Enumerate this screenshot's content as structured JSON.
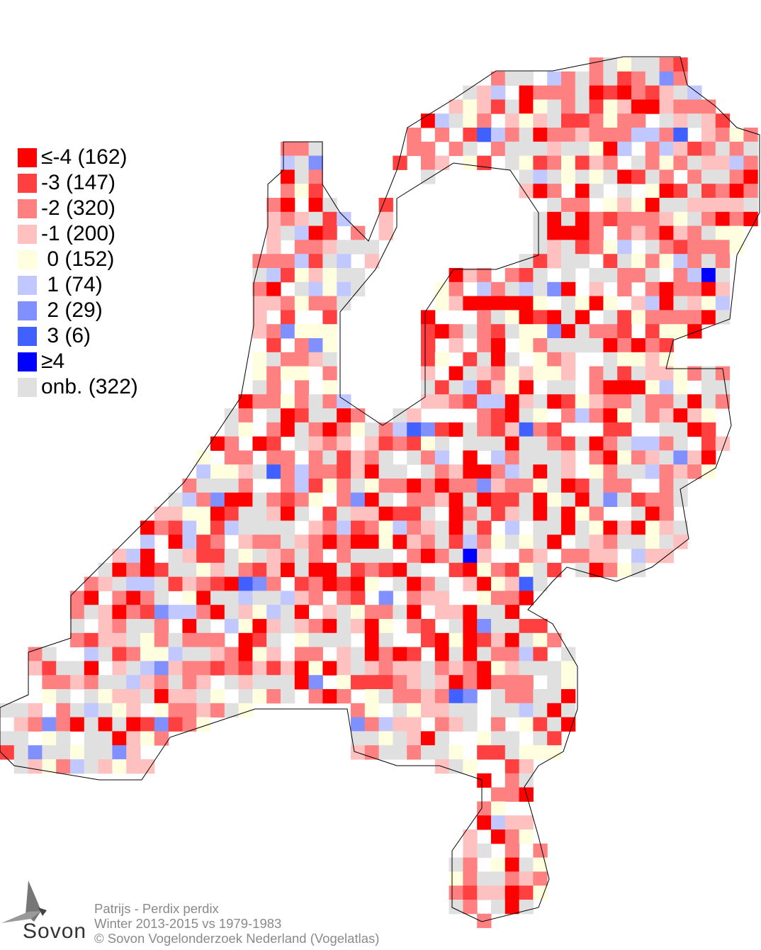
{
  "legend": [
    {
      "label": "≤-4 (162)",
      "color": "#ff0000"
    },
    {
      "label": "-3 (147)",
      "color": "#ff4040"
    },
    {
      "label": "-2 (320)",
      "color": "#ff8080"
    },
    {
      "label": "-1 (200)",
      "color": "#ffc0c0"
    },
    {
      "label": " 0 (152)",
      "color": "#ffffe0"
    },
    {
      "label": " 1 (74)",
      "color": "#c0c8ff"
    },
    {
      "label": " 2 (29)",
      "color": "#8090ff"
    },
    {
      "label": " 3 (6)",
      "color": "#4060ff"
    },
    {
      "label": "≥4",
      "color": "#0000ff"
    },
    {
      "label": "onb. (322)",
      "color": "#e0e0e0"
    }
  ],
  "footer": {
    "species": "Patrijs - Perdix perdix",
    "period": "Winter 2013-2015 vs 1979-1983",
    "copyright": "© Sovon Vogelonderzoek Nederland (Vogelatlas)"
  },
  "logo": {
    "text": "Sovon"
  }
}
